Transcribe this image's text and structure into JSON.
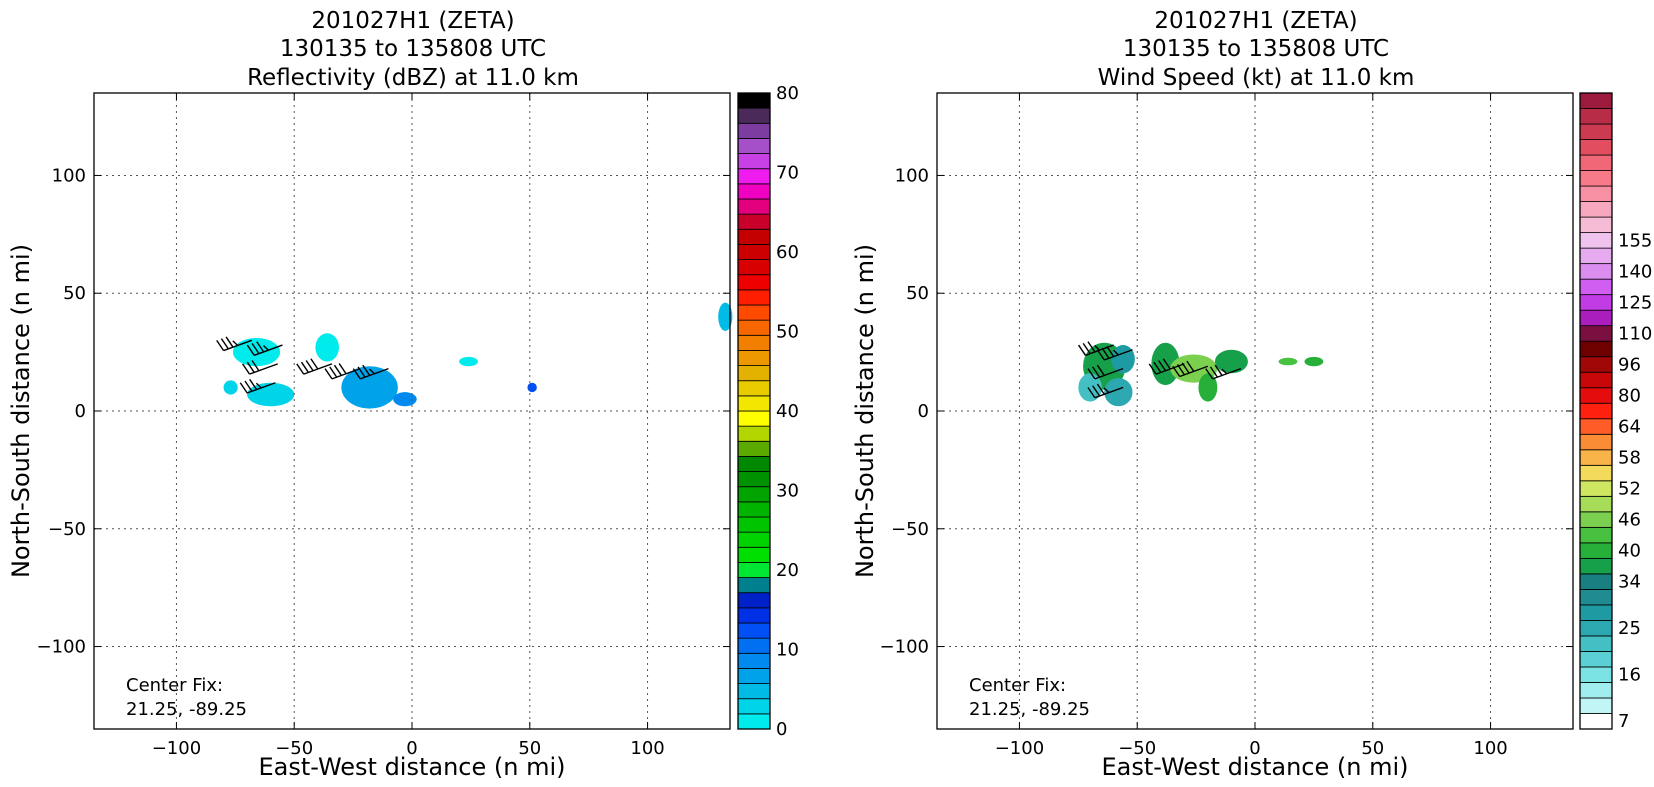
{
  "chart_data": [
    {
      "type": "heatmap",
      "title": [
        "201027H1 (ZETA)",
        "130135 to 135808 UTC",
        "Reflectivity (dBZ) at 11.0 km"
      ],
      "xlabel": "East-West distance (n mi)",
      "ylabel": "North-South distance (n mi)",
      "xlim": [
        -135,
        135
      ],
      "ylim": [
        -135,
        135
      ],
      "xticks": [
        -100,
        -50,
        0,
        50,
        100
      ],
      "yticks": [
        -100,
        -50,
        0,
        50,
        100
      ],
      "xtick_labels": [
        "−100",
        "−50",
        "0",
        "50",
        "100"
      ],
      "ytick_labels": [
        "−100",
        "−50",
        "0",
        "50",
        "100"
      ],
      "grid": true,
      "annotation": [
        "Center Fix:",
        "21.25, -89.25"
      ],
      "colorbar": {
        "label_values": [
          0,
          10,
          20,
          30,
          40,
          50,
          60,
          70,
          80
        ],
        "labels": [
          "0",
          "10",
          "20",
          "30",
          "40",
          "50",
          "60",
          "70",
          "80"
        ],
        "colors": [
          "#00ebeb",
          "#00d4e8",
          "#00bbe6",
          "#00a2ea",
          "#0089ef",
          "#0070f3",
          "#0050f5",
          "#0030e5",
          "#0020c8",
          "#007f8f",
          "#00e632",
          "#00e000",
          "#00d200",
          "#00c400",
          "#00b400",
          "#00a300",
          "#009200",
          "#008800",
          "#5aaa00",
          "#b4d600",
          "#ffff00",
          "#f3e600",
          "#e9cc00",
          "#e3b200",
          "#ee9800",
          "#f27f00",
          "#f86600",
          "#ff4a00",
          "#ff1e00",
          "#ef0000",
          "#d80000",
          "#cc0000",
          "#c40000",
          "#c8002a",
          "#e2007f",
          "#f000c0",
          "#ee1cee",
          "#c640e4",
          "#a550c9",
          "#7c3ca0",
          "#4a2a58",
          "#000000"
        ],
        "range": [
          0,
          80
        ]
      },
      "echo_patches": [
        {
          "x": -66,
          "y": 25,
          "rx": 10,
          "ry": 6,
          "value": 1
        },
        {
          "x": -36,
          "y": 27,
          "rx": 5,
          "ry": 6,
          "value": 1
        },
        {
          "x": -77,
          "y": 10,
          "rx": 3,
          "ry": 3,
          "value": 2
        },
        {
          "x": -60,
          "y": 7,
          "rx": 10,
          "ry": 5,
          "value": 2
        },
        {
          "x": -18,
          "y": 10,
          "rx": 12,
          "ry": 9,
          "value": 7
        },
        {
          "x": -3,
          "y": 5,
          "rx": 5,
          "ry": 3,
          "value": 9
        },
        {
          "x": 24,
          "y": 21,
          "rx": 4,
          "ry": 2,
          "value": 1
        },
        {
          "x": 51,
          "y": 10,
          "rx": 2,
          "ry": 2,
          "value": 12
        },
        {
          "x": 133,
          "y": 40,
          "rx": 3,
          "ry": 6,
          "value": 5
        }
      ],
      "wind_barbs": [
        {
          "x": -68,
          "y": 30,
          "dir": 250,
          "speed_kt": 35
        },
        {
          "x": -55,
          "y": 28,
          "dir": 250,
          "speed_kt": 35
        },
        {
          "x": -57,
          "y": 20,
          "dir": 250,
          "speed_kt": 30
        },
        {
          "x": -58,
          "y": 12,
          "dir": 250,
          "speed_kt": 35
        },
        {
          "x": -34,
          "y": 20,
          "dir": 250,
          "speed_kt": 40
        },
        {
          "x": -22,
          "y": 18,
          "dir": 250,
          "speed_kt": 40
        },
        {
          "x": -10,
          "y": 18,
          "dir": 250,
          "speed_kt": 35
        }
      ]
    },
    {
      "type": "heatmap",
      "title": [
        "201027H1 (ZETA)",
        "130135 to 135808 UTC",
        "Wind Speed (kt) at 11.0 km"
      ],
      "xlabel": "East-West distance (n mi)",
      "ylabel": "North-South distance (n mi)",
      "xlim": [
        -135,
        135
      ],
      "ylim": [
        -135,
        135
      ],
      "xticks": [
        -100,
        -50,
        0,
        50,
        100
      ],
      "yticks": [
        -100,
        -50,
        0,
        50,
        100
      ],
      "xtick_labels": [
        "−100",
        "−50",
        "0",
        "50",
        "100"
      ],
      "ytick_labels": [
        "−100",
        "−50",
        "0",
        "50",
        "100"
      ],
      "grid": true,
      "annotation": [
        "Center Fix:",
        "21.25, -89.25"
      ],
      "colorbar": {
        "labels": [
          "7",
          "16",
          "25",
          "34",
          "40",
          "46",
          "52",
          "58",
          "64",
          "80",
          "96",
          "110",
          "125",
          "140",
          "155"
        ],
        "label_bins": [
          0,
          3,
          6,
          9,
          11,
          13,
          15,
          17,
          19,
          21,
          23,
          25,
          27,
          29,
          31
        ],
        "colors": [
          "#ffffff",
          "#c2f6f6",
          "#a0eeee",
          "#7ae2e2",
          "#5ad0d4",
          "#44bfc4",
          "#2ca8b0",
          "#1e9aa2",
          "#208c92",
          "#1a7f80",
          "#17a04a",
          "#26b03a",
          "#48c040",
          "#7cd050",
          "#a7dc58",
          "#cfe660",
          "#f4da5a",
          "#f8b448",
          "#fb8c36",
          "#ff5c28",
          "#ff2010",
          "#e40c0c",
          "#c80808",
          "#a00808",
          "#6e0000",
          "#7a1040",
          "#aa1ebe",
          "#c23ce6",
          "#d05ef0",
          "#dc8ef0",
          "#e6aaee",
          "#f0c2ee",
          "#f6bcd6",
          "#f8a8be",
          "#f890a4",
          "#f67a88",
          "#f06878",
          "#e24d60",
          "#cc3a50",
          "#b82c48",
          "#9c1a3c"
        ]
      },
      "wind_patches": [
        {
          "x": -64,
          "y": 19,
          "rx": 9,
          "ry": 10,
          "value": 38
        },
        {
          "x": -58,
          "y": 8,
          "rx": 6,
          "ry": 6,
          "value": 24
        },
        {
          "x": -70,
          "y": 10,
          "rx": 5,
          "ry": 6,
          "value": 22
        },
        {
          "x": -56,
          "y": 22,
          "rx": 5,
          "ry": 6,
          "value": 28
        },
        {
          "x": -38,
          "y": 20,
          "rx": 6,
          "ry": 9,
          "value": 38
        },
        {
          "x": -26,
          "y": 18,
          "rx": 10,
          "ry": 6,
          "value": 45
        },
        {
          "x": -20,
          "y": 10,
          "rx": 4,
          "ry": 6,
          "value": 40
        },
        {
          "x": -10,
          "y": 21,
          "rx": 7,
          "ry": 5,
          "value": 36
        },
        {
          "x": 14,
          "y": 21,
          "rx": 4,
          "ry": 1.6,
          "value": 44
        },
        {
          "x": 25,
          "y": 21,
          "rx": 4,
          "ry": 2,
          "value": 40
        }
      ],
      "wind_barbs": [
        {
          "x": -60,
          "y": 28,
          "dir": 250,
          "speed_kt": 35
        },
        {
          "x": -52,
          "y": 26,
          "dir": 250,
          "speed_kt": 35
        },
        {
          "x": -56,
          "y": 18,
          "dir": 250,
          "speed_kt": 30
        },
        {
          "x": -56,
          "y": 10,
          "dir": 250,
          "speed_kt": 35
        },
        {
          "x": -30,
          "y": 20,
          "dir": 250,
          "speed_kt": 40
        },
        {
          "x": -20,
          "y": 19,
          "dir": 250,
          "speed_kt": 40
        },
        {
          "x": -6,
          "y": 18,
          "dir": 250,
          "speed_kt": 35
        }
      ]
    }
  ]
}
